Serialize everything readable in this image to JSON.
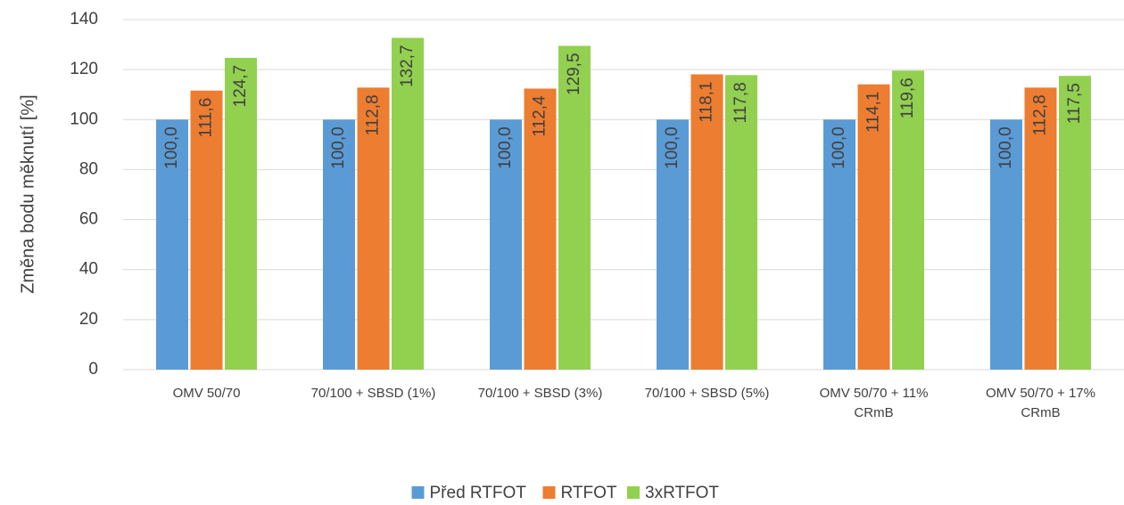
{
  "chart_data": {
    "type": "bar",
    "y_label": "Změna bodu měknutí [%]",
    "categories": [
      "OMV 50/70",
      "70/100 + SBSD (1%)",
      "70/100 + SBSD (3%)",
      "70/100 + SBSD (5%)",
      "OMV 50/70 + 11% CRmB",
      "OMV 50/70 + 17% CRmB"
    ],
    "series": [
      {
        "name": "Před RTFOT",
        "color": "#5b9bd5",
        "values": [
          100.0,
          100.0,
          100.0,
          100.0,
          100.0,
          100.0
        ],
        "value_labels": [
          "100,0",
          "100,0",
          "100,0",
          "100,0",
          "100,0",
          "100,0"
        ]
      },
      {
        "name": "RTFOT",
        "color": "#ed7d31",
        "values": [
          111.6,
          112.8,
          112.4,
          118.1,
          114.1,
          112.8
        ],
        "value_labels": [
          "111,6",
          "112,8",
          "112,4",
          "118,1",
          "114,1",
          "112,8"
        ]
      },
      {
        "name": "3xRTFOT",
        "color": "#92d050",
        "values": [
          124.7,
          132.7,
          129.5,
          117.8,
          119.6,
          117.5
        ],
        "value_labels": [
          "124,7",
          "132,7",
          "129,5",
          "117,8",
          "119,6",
          "117,5"
        ]
      }
    ],
    "ylim": [
      0,
      140
    ],
    "yticks": [
      0,
      20,
      40,
      60,
      80,
      100,
      120,
      140
    ],
    "grid": true,
    "legend": "bottom"
  }
}
